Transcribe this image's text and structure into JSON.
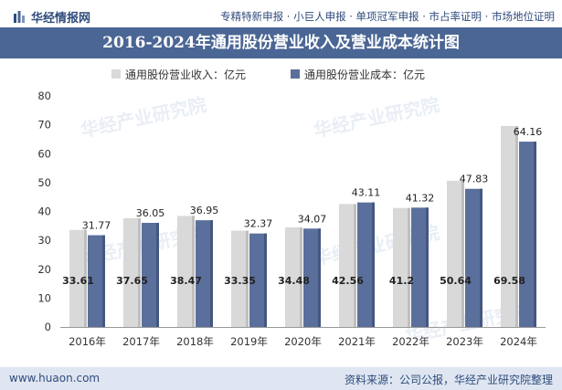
{
  "header": {
    "logo_text": "华经情报网",
    "tagline": "专精特新申报 · 小巨人申报 · 单项冠军申报 · 市占率证明 · 市场地位证明"
  },
  "footer": {
    "url": "www.huaon.com",
    "source": "资料来源：公司公报，华经产业研究院整理"
  },
  "watermark": "华经产业研究院",
  "colors": {
    "revenue": "#d9d9d9",
    "cost": "#5a6f9b",
    "title_bg": "#4a6694",
    "footer_bg": "#dfe6f1"
  },
  "chart_data": {
    "type": "bar",
    "title": "2016-2024年通用股份营业收入及营业成本统计图",
    "categories": [
      "2016年",
      "2017年",
      "2018年",
      "2019年",
      "2020年",
      "2021年",
      "2022年",
      "2023年",
      "2024年"
    ],
    "series": [
      {
        "name": "通用股份营业收入：亿元",
        "values": [
          33.61,
          37.65,
          38.47,
          33.35,
          34.48,
          42.56,
          41.2,
          50.64,
          69.58
        ]
      },
      {
        "name": "通用股份营业成本：亿元",
        "values": [
          31.77,
          36.05,
          36.95,
          32.37,
          34.07,
          43.11,
          41.32,
          47.83,
          64.16
        ]
      }
    ],
    "ylim": [
      0,
      80
    ],
    "yticks": [
      0,
      10,
      20,
      30,
      40,
      50,
      60,
      70,
      80
    ],
    "legend_position": "top-left"
  }
}
